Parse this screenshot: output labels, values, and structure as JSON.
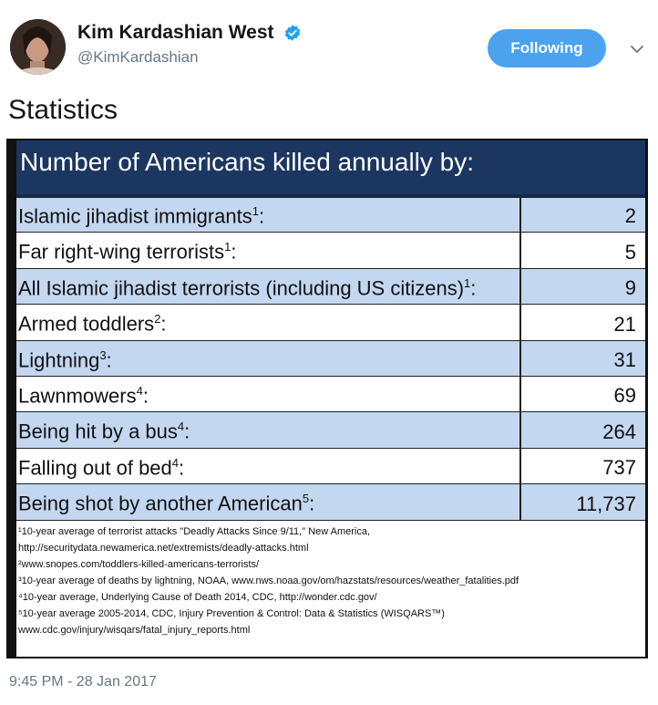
{
  "tweet": {
    "display_name": "Kim Kardashian West",
    "handle": "@KimKardashian",
    "follow_label": "Following",
    "text": "Statistics",
    "timestamp": "9:45 PM - 28 Jan 2017"
  },
  "colors": {
    "follow_button": "#4ba3ef",
    "verified_badge": "#1da1f2",
    "table_header": "#1b3660",
    "row_blue": "#c3d7f0"
  },
  "image": {
    "title": "Number of Americans killed annually by:",
    "rows": [
      {
        "label": "Islamic jihadist immigrants",
        "sup": "1",
        "suffix": ":",
        "value": "2"
      },
      {
        "label": "Far right-wing terrorists",
        "sup": "1",
        "suffix": ":",
        "value": "5"
      },
      {
        "label": "All Islamic jihadist terrorists (including US citizens)",
        "sup": "1",
        "suffix": ":",
        "value": "9"
      },
      {
        "label": "Armed toddlers",
        "sup": "2",
        "suffix": ":",
        "value": "21"
      },
      {
        "label": "Lightning",
        "sup": "3",
        "suffix": ":",
        "value": "31"
      },
      {
        "label": "Lawnmowers",
        "sup": "4",
        "suffix": ":",
        "value": "69"
      },
      {
        "label": "Being hit by a bus",
        "sup": "4",
        "suffix": ":",
        "value": "264"
      },
      {
        "label": "Falling out of bed",
        "sup": "4",
        "suffix": ":",
        "value": "737"
      },
      {
        "label": "Being shot by another American",
        "sup": "5",
        "suffix": ":",
        "value": "11,737"
      }
    ],
    "footnotes": [
      "¹10-year average of terrorist attacks \"Deadly Attacks Since 9/11,\" New America,",
      "http://securitydata.newamerica.net/extremists/deadly-attacks.html",
      "²www.snopes.com/toddlers-killed-americans-terrorists/",
      "³10-year average of deaths by lightning, NOAA, www.nws.noaa.gov/om/hazstats/resources/weather_fatalities.pdf",
      "⁴10-year average, Underlying Cause of Death 2014, CDC, http://wonder.cdc.gov/",
      "⁵10-year average 2005-2014, CDC, Injury Prevention & Control: Data & Statistics (WISQARS™)",
      "www.cdc.gov/injury/wisqars/fatal_injury_reports.html"
    ]
  }
}
